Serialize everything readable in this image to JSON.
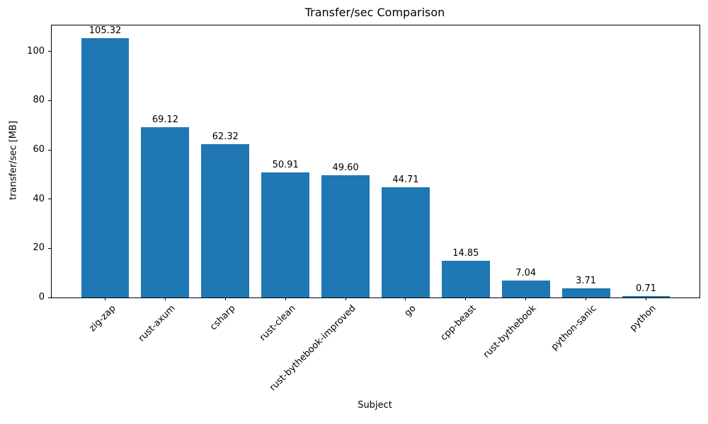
{
  "chart_data": {
    "type": "bar",
    "title": "Transfer/sec Comparison",
    "xlabel": "Subject",
    "ylabel": "transfer/sec [MB]",
    "categories": [
      "zig-zap",
      "rust-axum",
      "csharp",
      "rust-clean",
      "rust-bythebook-improved",
      "go",
      "cpp-beast",
      "rust-bythebook",
      "python-sanic",
      "python"
    ],
    "values": [
      105.32,
      69.12,
      62.32,
      50.91,
      49.6,
      44.71,
      14.85,
      7.04,
      3.71,
      0.71
    ],
    "value_labels": [
      "105.32",
      "69.12",
      "62.32",
      "50.91",
      "49.60",
      "44.71",
      "14.85",
      "7.04",
      "3.71",
      "0.71"
    ],
    "yticks": [
      0,
      20,
      40,
      60,
      80,
      100
    ],
    "ylim": [
      0,
      110.59
    ],
    "bar_color": "#1f77b4",
    "bar_width_ratio": 0.8,
    "grid": false,
    "legend": "none",
    "xtick_rotation": 45
  }
}
